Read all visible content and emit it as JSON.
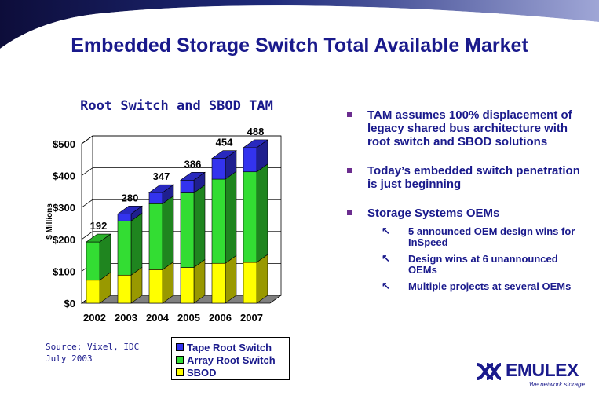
{
  "title": "Embedded Storage Switch Total Available Market",
  "chart_data": {
    "type": "bar",
    "stacked": true,
    "title": "Root Switch and SBOD TAM",
    "ylabel": "$ Millions",
    "xlabel": "",
    "categories": [
      "2002",
      "2003",
      "2004",
      "2005",
      "2006",
      "2007"
    ],
    "series": [
      {
        "name": "SBOD",
        "color": "#ffff00",
        "values": [
          72,
          88,
          105,
          112,
          125,
          128
        ]
      },
      {
        "name": "Array Root Switch",
        "color": "#33dd33",
        "values": [
          120,
          170,
          207,
          234,
          264,
          284
        ]
      },
      {
        "name": "Tape Root Switch",
        "color": "#3333ee",
        "values": [
          0,
          22,
          35,
          40,
          65,
          76
        ]
      }
    ],
    "totals": [
      "192",
      "280",
      "347",
      "386",
      "454",
      "488"
    ],
    "yticks": [
      "$0",
      "$100",
      "$200",
      "$300",
      "$400",
      "$500"
    ],
    "ylim": [
      0,
      500
    ],
    "grid": true,
    "three_d": true
  },
  "bullets": [
    {
      "text": "TAM assumes 100% displacement of legacy shared bus architecture with root switch and SBOD solutions",
      "sub": []
    },
    {
      "text": "Today’s embedded switch penetration is just beginning",
      "sub": []
    },
    {
      "text": "Storage Systems OEMs",
      "sub": [
        "5 announced OEM design wins for InSpeed",
        "Design wins at 6 unannounced OEMs",
        "Multiple projects at several OEMs"
      ]
    }
  ],
  "source": {
    "line1": "Source: Vixel, IDC",
    "line2": "July 2003"
  },
  "legend": [
    {
      "label": "Tape Root Switch",
      "color": "#3333ee"
    },
    {
      "label": "Array Root Switch",
      "color": "#33dd33"
    },
    {
      "label": "SBOD",
      "color": "#ffff00"
    }
  ],
  "logo": {
    "name": "EMULEX",
    "tagline": "We network storage"
  }
}
